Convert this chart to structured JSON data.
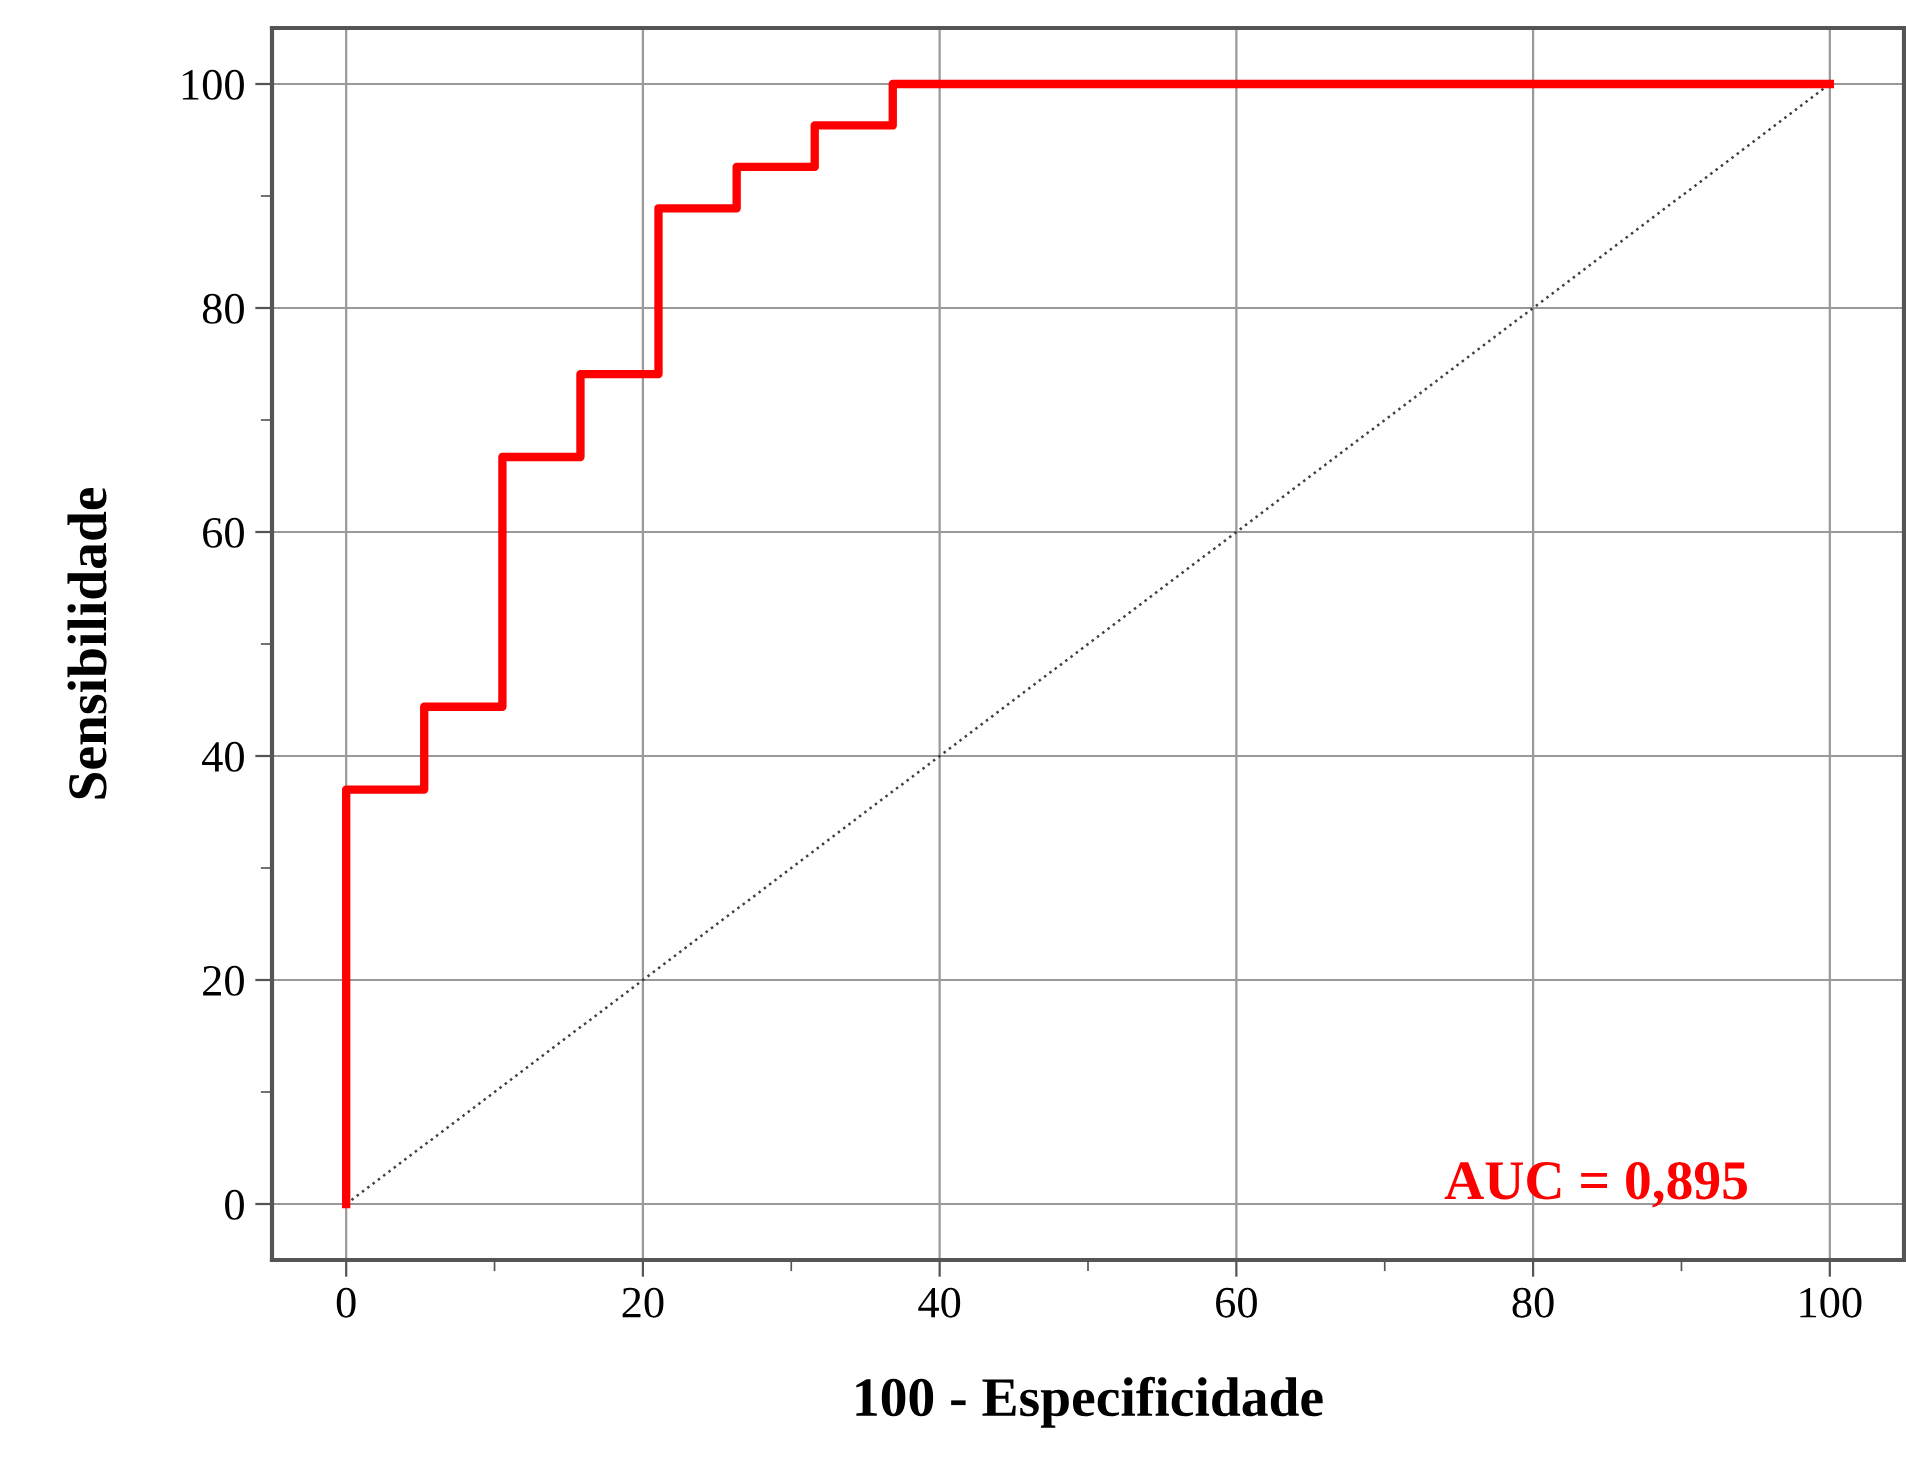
{
  "chart_data": {
    "type": "step",
    "xlabel": "100 - Especificidade",
    "ylabel": "Sensibilidade",
    "series": [
      {
        "color": "#ff0000",
        "x": [
          0,
          0,
          5.26,
          10.53,
          15.79,
          21.05,
          26.32,
          31.58,
          36.84,
          100
        ],
        "values": [
          0,
          37,
          44.4,
          66.7,
          74.1,
          88.9,
          92.6,
          96.3,
          100,
          100
        ]
      },
      {
        "type": "line",
        "color": "#404040",
        "line_style": "dotted",
        "x": [
          0,
          100
        ],
        "values": [
          0,
          100
        ]
      }
    ],
    "xlim": [
      -5,
      105
    ],
    "ylim": [
      -5,
      105
    ],
    "xticks": [
      0,
      {
        "value": 10,
        "label": null
      },
      20,
      {
        "value": 30,
        "label": null
      },
      40,
      {
        "value": 50,
        "label": null
      },
      60,
      {
        "value": 70,
        "label": null
      },
      80,
      {
        "value": 90,
        "label": null
      },
      100
    ],
    "yticks": [
      0,
      {
        "value": 10,
        "label": null
      },
      20,
      {
        "value": 30,
        "label": null
      },
      40,
      {
        "value": 50,
        "label": null
      },
      60,
      {
        "value": 70,
        "label": null
      },
      80,
      {
        "value": 90,
        "label": null
      },
      100
    ],
    "grid": true,
    "annotations": [
      "AUC = 0,895"
    ]
  }
}
